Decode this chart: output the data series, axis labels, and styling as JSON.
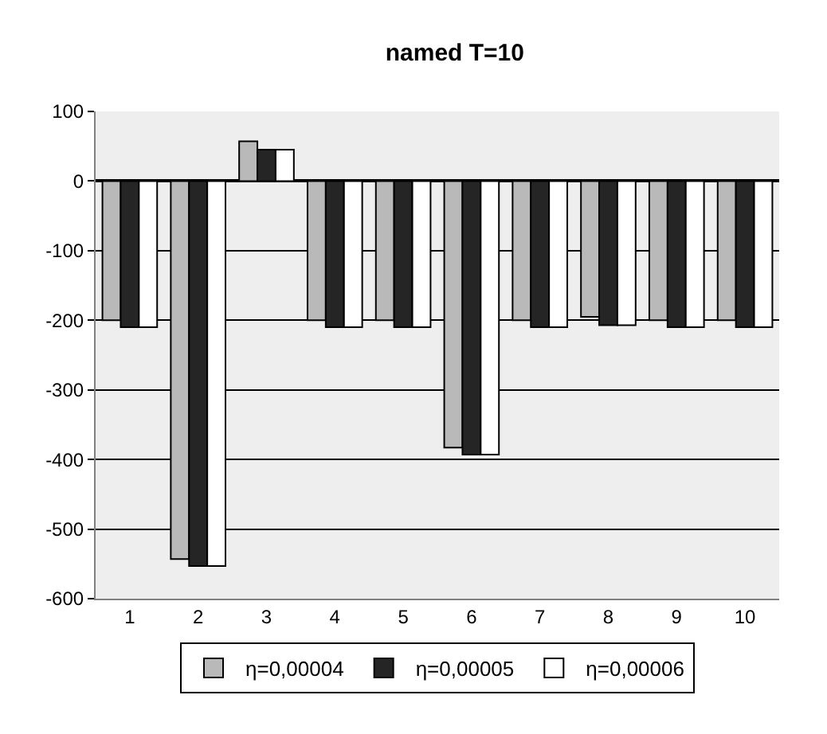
{
  "chart_data": {
    "type": "bar",
    "title": "named T=10",
    "categories": [
      "1",
      "2",
      "3",
      "4",
      "5",
      "6",
      "7",
      "8",
      "9",
      "10"
    ],
    "series": [
      {
        "name": "η=0,00004",
        "color": "#b9b9b9",
        "values": [
          -200,
          -543,
          57,
          -200,
          -200,
          -383,
          -200,
          -195,
          -200,
          -200
        ]
      },
      {
        "name": "η=0,00005",
        "color": "#252525",
        "values": [
          -210,
          -553,
          45,
          -210,
          -210,
          -393,
          -210,
          -207,
          -210,
          -210
        ]
      },
      {
        "name": "η=0,00006",
        "color": "#ffffff",
        "values": [
          -210,
          -553,
          45,
          -210,
          -210,
          -393,
          -210,
          -207,
          -210,
          -210
        ]
      }
    ],
    "ylim": [
      -600,
      100
    ],
    "yticks": [
      -600,
      -500,
      -400,
      -300,
      -200,
      -100,
      0,
      100
    ],
    "grid": "y",
    "legend": "bottom"
  }
}
